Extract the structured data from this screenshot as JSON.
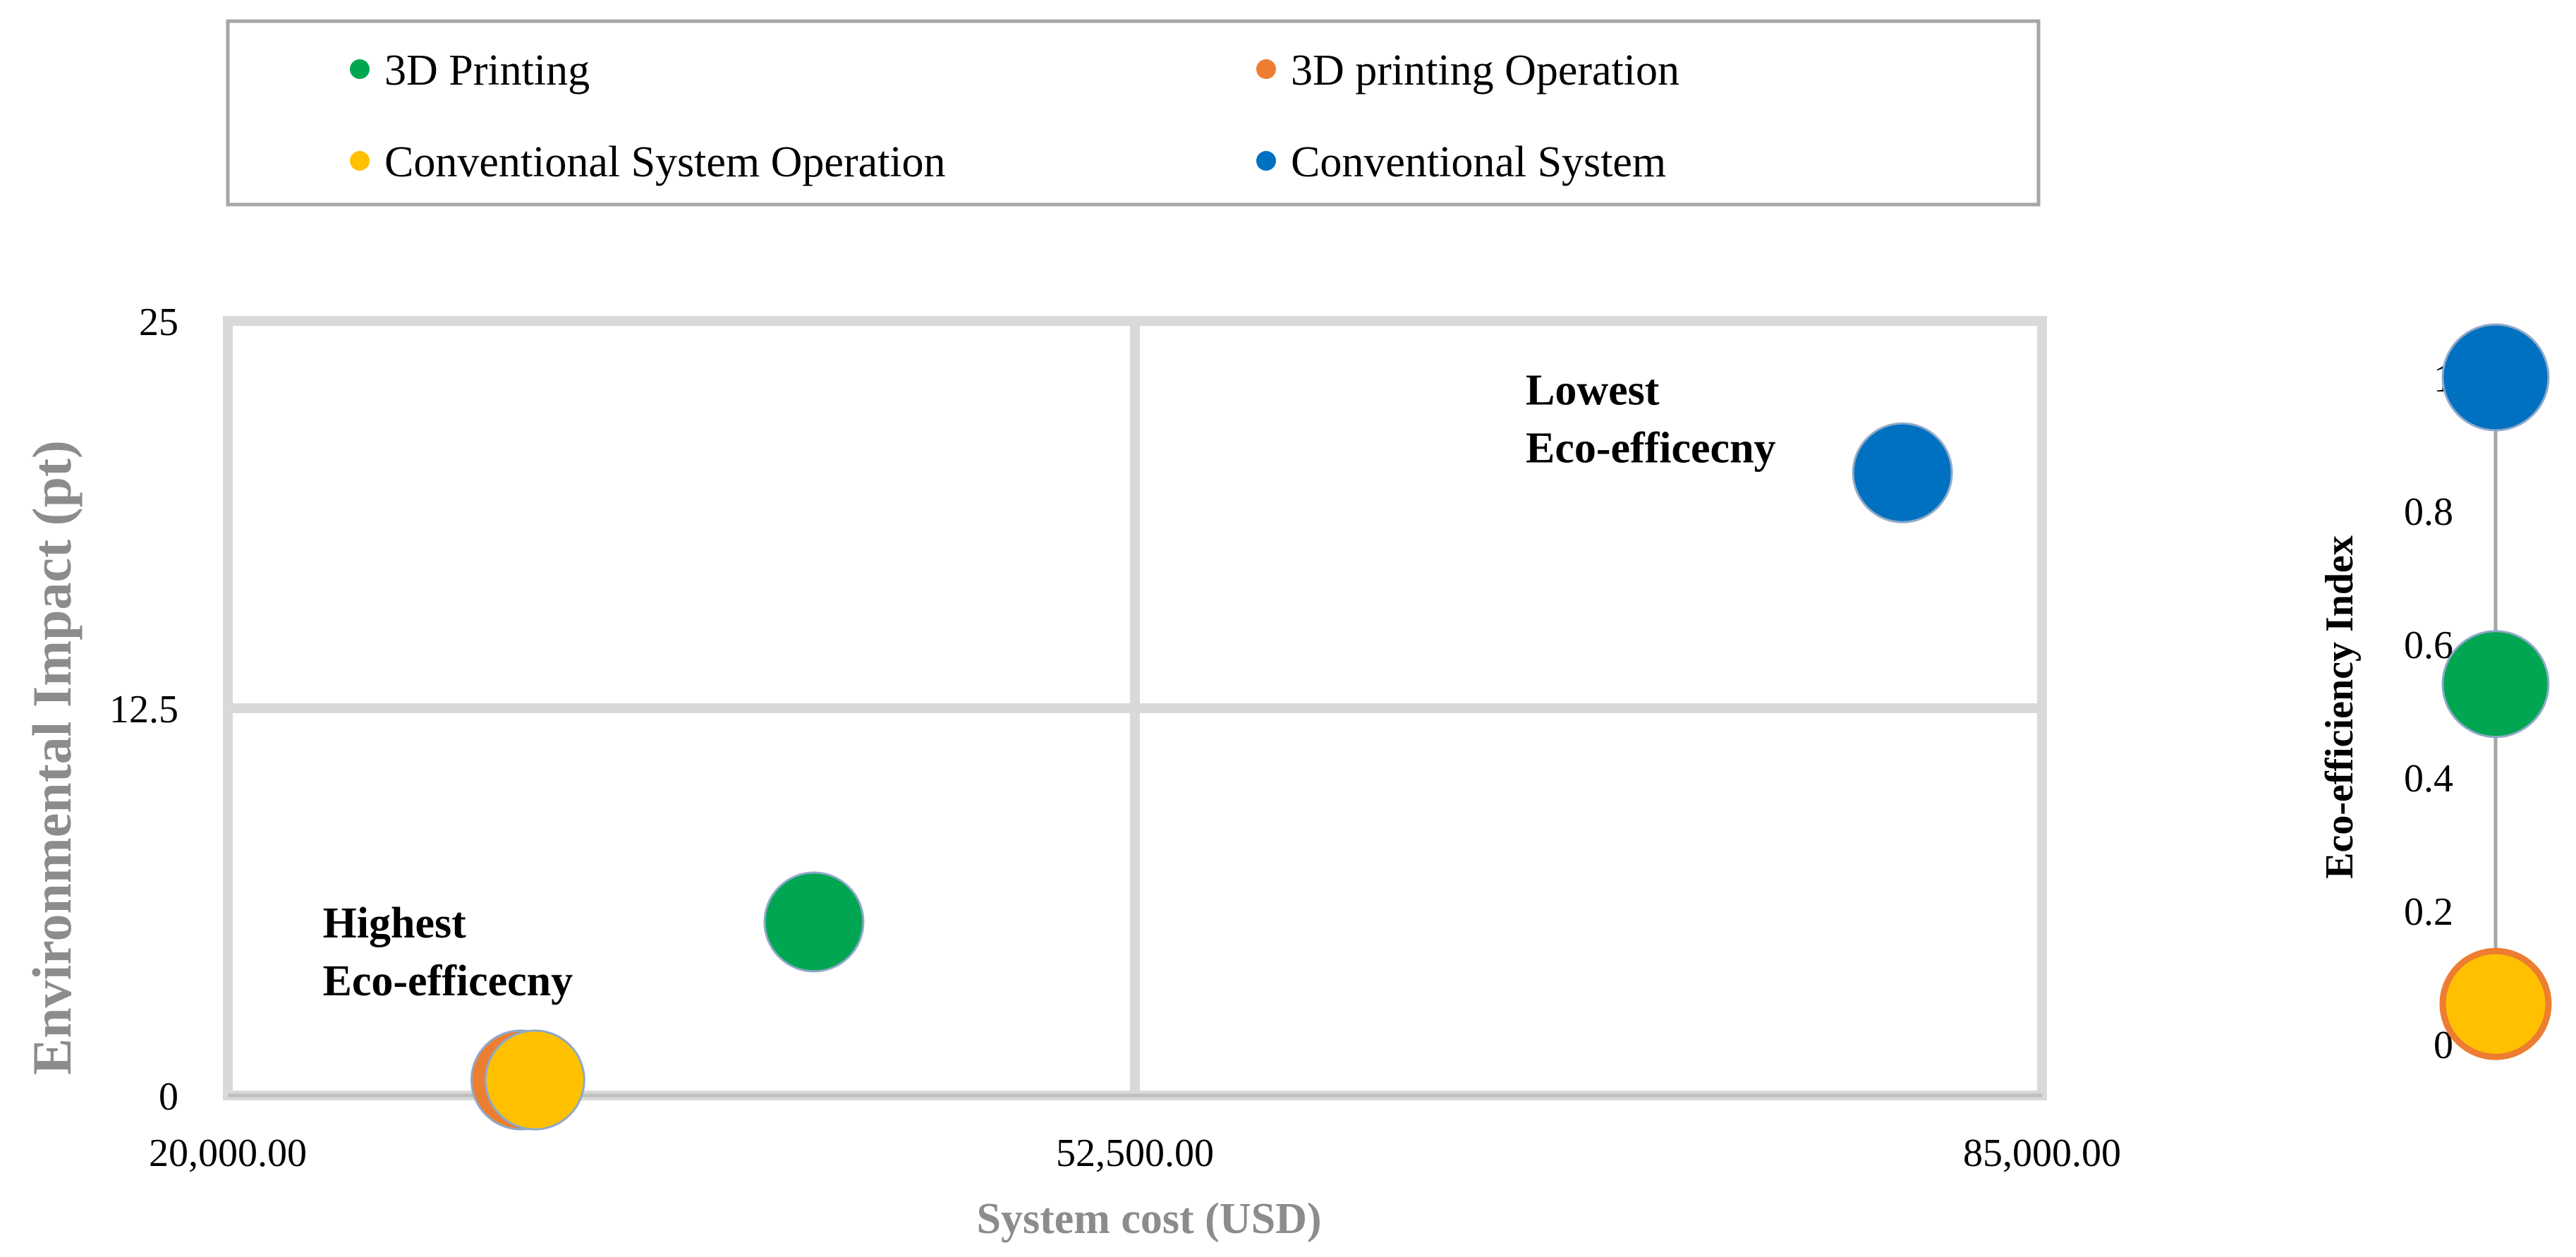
{
  "chart_data": [
    {
      "type": "bubble",
      "title": "",
      "xlabel": "System cost (USD)",
      "ylabel": "Environmental Impact (pt)",
      "xlim": [
        20000,
        85000
      ],
      "ylim": [
        0,
        25
      ],
      "x_ticks": [
        "20,000.00",
        "52,500.00",
        "85,000.00"
      ],
      "y_ticks": [
        "0",
        "12.5",
        "25"
      ],
      "grid": true,
      "legend_position": "top",
      "series": [
        {
          "name": "3D Printing",
          "color": "#00A651",
          "x": 41000,
          "y": 5.6
        },
        {
          "name": "3D printing Operation",
          "color": "#ED7D31",
          "x": 30500,
          "y": 0.5
        },
        {
          "name": "Conventional System Operation",
          "color": "#FFC000",
          "x": 31000,
          "y": 0.5
        },
        {
          "name": "Conventional System",
          "color": "#0070C0",
          "x": 80000,
          "y": 20.1
        }
      ],
      "annotations": [
        {
          "lines": [
            "Lowest",
            "Eco-efficecny"
          ],
          "x": 66500,
          "y": 22.3
        },
        {
          "lines": [
            "Highest",
            "Eco-efficecny"
          ],
          "x": 23400,
          "y": 5.1
        }
      ]
    },
    {
      "type": "dot-scale",
      "ylabel": "Eco-efficiency Index",
      "ylim": [
        0,
        1
      ],
      "y_ticks": [
        "0",
        "0.2",
        "0.4",
        "0.6",
        "0.8",
        "1"
      ],
      "points": [
        {
          "name": "Conventional System",
          "color": "#0070C0",
          "value": 1.0
        },
        {
          "name": "3D Printing",
          "color": "#00A651",
          "value": 0.54
        },
        {
          "name": "3D printing Operation / Conventional System Operation",
          "color": "#FFC000",
          "outline": "#ED7D31",
          "value": 0.06
        }
      ]
    }
  ]
}
